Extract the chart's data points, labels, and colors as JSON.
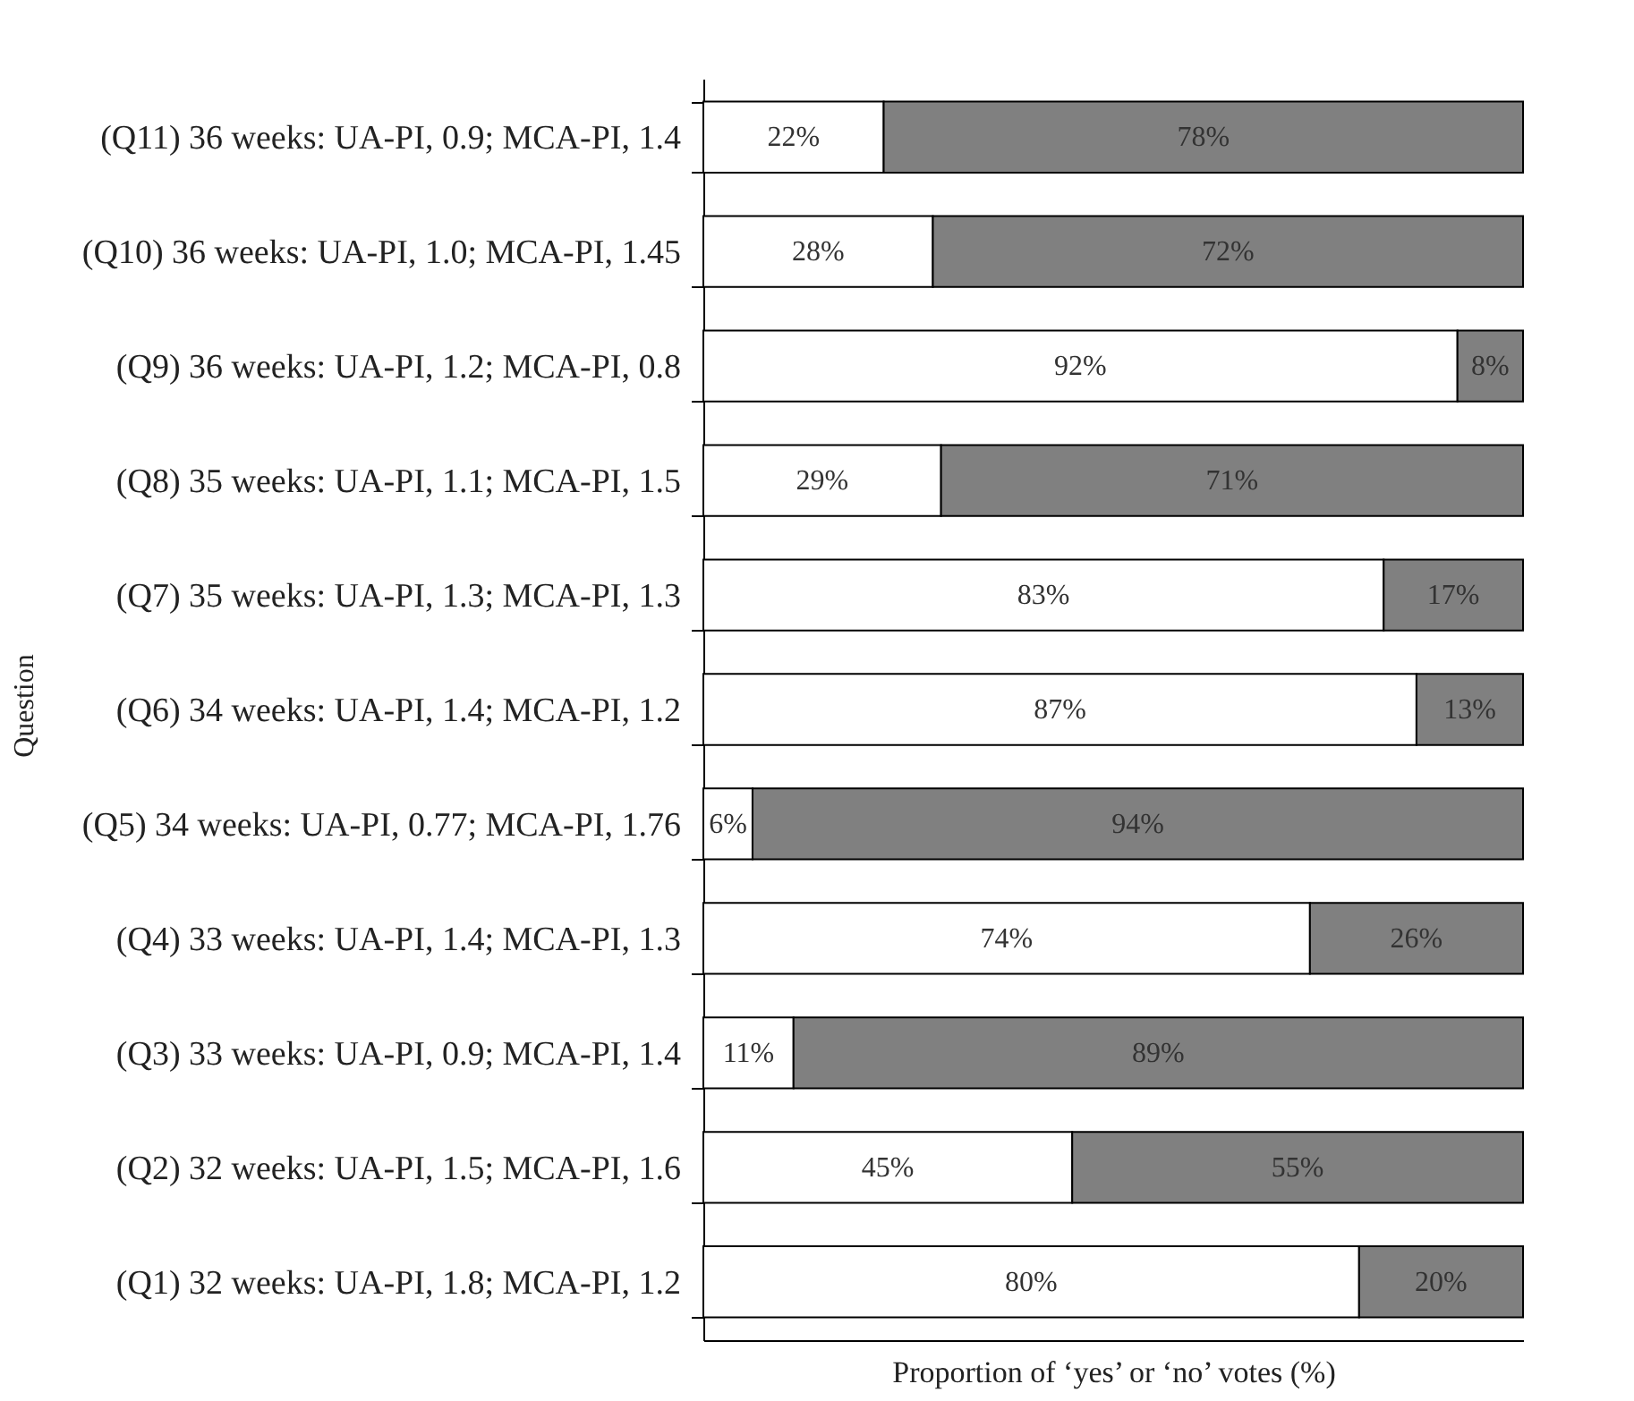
{
  "chart_data": {
    "type": "bar",
    "orientation": "horizontal",
    "stacked": true,
    "tick_labels": "y",
    "grid": false,
    "ylabel": "Question",
    "xlabel": "Proportion of ‘yes’ or ‘no’ votes (%)",
    "categories": [
      "(Q11) 36 weeks: UA-PI, 0.9; MCA-PI, 1.4",
      "(Q10) 36 weeks: UA-PI, 1.0; MCA-PI, 1.45",
      "(Q9) 36 weeks: UA-PI, 1.2; MCA-PI, 0.8",
      "(Q8) 35 weeks: UA-PI, 1.1; MCA-PI, 1.5",
      "(Q7) 35 weeks: UA-PI, 1.3; MCA-PI, 1.3",
      "(Q6) 34 weeks: UA-PI, 1.4; MCA-PI, 1.2",
      "(Q5) 34 weeks: UA-PI, 0.77; MCA-PI, 1.76",
      "(Q4) 33 weeks: UA-PI, 1.4; MCA-PI, 1.3",
      "(Q3) 33 weeks: UA-PI, 0.9; MCA-PI, 1.4",
      "(Q2) 32 weeks: UA-PI, 1.5; MCA-PI, 1.6",
      "(Q1) 32 weeks: UA-PI, 1.8; MCA-PI, 1.2"
    ],
    "series": [
      {
        "color": "#ffffff",
        "values": [
          22,
          28,
          92,
          29,
          83,
          87,
          6,
          74,
          11,
          45,
          80
        ],
        "value_labels": [
          "22%",
          "28%",
          "92%",
          "29%",
          "83%",
          "87%",
          "6%",
          "74%",
          "11%",
          "45%",
          "80%"
        ]
      },
      {
        "color": "#808080",
        "values": [
          78,
          72,
          8,
          71,
          17,
          13,
          94,
          26,
          89,
          55,
          20
        ],
        "value_labels": [
          "78%",
          "72%",
          "8%",
          "71%",
          "17%",
          "13%",
          "94%",
          "26%",
          "89%",
          "55%",
          "20%"
        ]
      }
    ]
  }
}
